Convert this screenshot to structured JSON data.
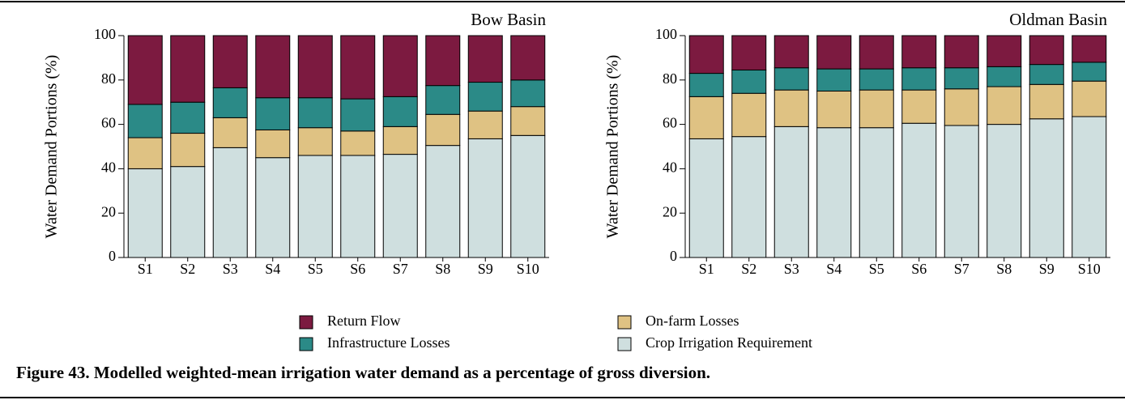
{
  "chart_data": [
    {
      "type": "stacked_bar",
      "title": "Bow Basin",
      "ylabel": "Water Demand Portions (%)",
      "categories": [
        "S1",
        "S2",
        "S3",
        "S4",
        "S5",
        "S6",
        "S7",
        "S8",
        "S9",
        "S10"
      ],
      "ylim": [
        0,
        100
      ],
      "yticks": [
        0,
        20,
        40,
        60,
        80,
        100
      ],
      "series": [
        {
          "name": "Crop Irrigation Requirement",
          "color": "#cfdfdf",
          "values": [
            40,
            41,
            49.5,
            45,
            46,
            46,
            46.5,
            50.5,
            53.5,
            55
          ]
        },
        {
          "name": "On-farm Losses",
          "color": "#dfc283",
          "values": [
            14,
            15,
            13.5,
            12.5,
            12.5,
            11,
            12.5,
            14,
            12.5,
            13
          ]
        },
        {
          "name": "Infrastructure Losses",
          "color": "#2b8a87",
          "values": [
            15,
            14,
            13.5,
            14.5,
            13.5,
            14.5,
            13.5,
            13,
            13,
            12
          ]
        },
        {
          "name": "Return Flow",
          "color": "#7c1a40",
          "values": [
            31,
            30,
            23.5,
            28,
            28,
            28.5,
            27.5,
            22.5,
            21,
            20
          ]
        }
      ]
    },
    {
      "type": "stacked_bar",
      "title": "Oldman Basin",
      "ylabel": "Water Demand Portions (%)",
      "categories": [
        "S1",
        "S2",
        "S3",
        "S4",
        "S5",
        "S6",
        "S7",
        "S8",
        "S9",
        "S10"
      ],
      "ylim": [
        0,
        100
      ],
      "yticks": [
        0,
        20,
        40,
        60,
        80,
        100
      ],
      "series": [
        {
          "name": "Crop Irrigation Requirement",
          "color": "#cfdfdf",
          "values": [
            53.5,
            54.5,
            59,
            58.5,
            58.5,
            60.5,
            59.5,
            60,
            62.5,
            63.5
          ]
        },
        {
          "name": "On-farm Losses",
          "color": "#dfc283",
          "values": [
            19,
            19.5,
            16.5,
            16.5,
            17,
            15,
            16.5,
            17,
            15.5,
            16
          ]
        },
        {
          "name": "Infrastructure Losses",
          "color": "#2b8a87",
          "values": [
            10.5,
            10.5,
            10,
            10,
            9.5,
            10,
            9.5,
            9,
            9,
            8.5
          ]
        },
        {
          "name": "Return Flow",
          "color": "#7c1a40",
          "values": [
            17,
            15.5,
            14.5,
            15,
            15,
            14.5,
            14.5,
            14,
            13,
            12
          ]
        }
      ]
    }
  ],
  "caption": "Figure 43. Modelled weighted-mean irrigation water demand as a percentage of gross diversion."
}
